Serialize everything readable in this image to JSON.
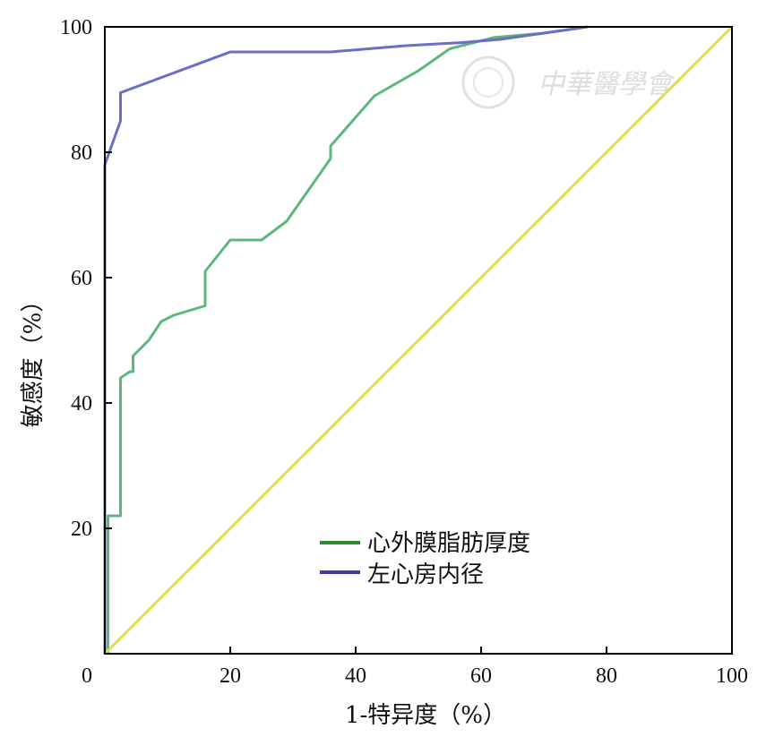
{
  "chart_data": {
    "type": "line",
    "xlabel": "1-特异度（%）",
    "ylabel": "敏感度（%）",
    "xlim": [
      0,
      100
    ],
    "ylim": [
      0,
      100
    ],
    "xticks": [
      "0",
      "20",
      "40",
      "60",
      "80",
      "100"
    ],
    "yticks": [
      "20",
      "40",
      "60",
      "80",
      "100"
    ],
    "grid": false,
    "legend_position": "bottom-center",
    "series": [
      {
        "name": "心外膜脂肪厚度",
        "color": "#5cb87a",
        "legend_color": "#2e8b2e",
        "points": [
          [
            0.5,
            0
          ],
          [
            0.5,
            22
          ],
          [
            2.5,
            22
          ],
          [
            2.5,
            44
          ],
          [
            4,
            45
          ],
          [
            4.5,
            45
          ],
          [
            4.5,
            47.5
          ],
          [
            7,
            50
          ],
          [
            9,
            53
          ],
          [
            11,
            54
          ],
          [
            16,
            55.5
          ],
          [
            16,
            61
          ],
          [
            20,
            66
          ],
          [
            25,
            66
          ],
          [
            29,
            69
          ],
          [
            36,
            79
          ],
          [
            36,
            81
          ],
          [
            43,
            89
          ],
          [
            50,
            93
          ],
          [
            55,
            96.5
          ],
          [
            62,
            98.3
          ],
          [
            70,
            99
          ],
          [
            77,
            100
          ]
        ]
      },
      {
        "name": "左心房内径",
        "color": "#6a6ec4",
        "legend_color": "#3c3ca8",
        "points": [
          [
            0,
            0
          ],
          [
            0,
            78
          ],
          [
            2.5,
            85
          ],
          [
            2.5,
            89.5
          ],
          [
            20,
            96
          ],
          [
            36,
            96
          ],
          [
            48,
            97
          ],
          [
            57,
            97.5
          ],
          [
            63,
            98
          ],
          [
            70,
            99
          ],
          [
            77,
            100
          ]
        ]
      },
      {
        "name": "",
        "color": "#d8e04a",
        "points": [
          [
            0,
            0
          ],
          [
            100,
            100
          ]
        ]
      }
    ]
  },
  "watermark": {
    "text": "中華醫學會"
  }
}
